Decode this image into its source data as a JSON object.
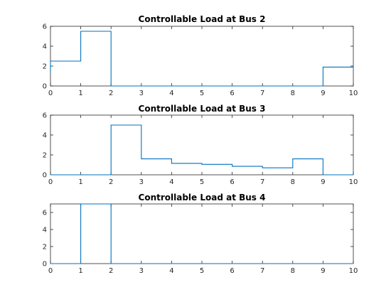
{
  "chart_data": [
    {
      "type": "line",
      "title": "Controllable Load at Bus 2",
      "xlabel": "",
      "ylabel": "",
      "xlim": [
        0,
        10
      ],
      "ylim": [
        0,
        6
      ],
      "xticks": [
        0,
        1,
        2,
        3,
        4,
        5,
        6,
        7,
        8,
        9,
        10
      ],
      "yticks": [
        0,
        2,
        4,
        6
      ],
      "grid": false,
      "series": [
        {
          "color": "#0072BD",
          "x": [
            0,
            0,
            1,
            1,
            2,
            2,
            9,
            9,
            10,
            10
          ],
          "y": [
            1.4,
            2.5,
            2.5,
            5.5,
            5.5,
            0,
            0,
            1.9,
            1.9,
            2.0
          ]
        }
      ]
    },
    {
      "type": "line",
      "title": "Controllable Load at Bus 3",
      "xlabel": "",
      "ylabel": "",
      "xlim": [
        0,
        10
      ],
      "ylim": [
        0,
        6
      ],
      "xticks": [
        0,
        1,
        2,
        3,
        4,
        5,
        6,
        7,
        8,
        9,
        10
      ],
      "yticks": [
        0,
        2,
        4,
        6
      ],
      "grid": false,
      "series": [
        {
          "color": "#0072BD",
          "x": [
            0,
            2,
            2,
            3,
            3,
            4,
            4,
            5,
            5,
            6,
            6,
            7,
            7,
            8,
            8,
            9,
            9,
            10
          ],
          "y": [
            0,
            0,
            5.0,
            5.0,
            1.6,
            1.6,
            1.15,
            1.15,
            1.05,
            1.05,
            0.85,
            0.85,
            0.7,
            0.7,
            1.6,
            1.6,
            0,
            0
          ]
        }
      ]
    },
    {
      "type": "line",
      "title": "Controllable Load at Bus 4",
      "xlabel": "",
      "ylabel": "",
      "xlim": [
        0,
        10
      ],
      "ylim": [
        0,
        7
      ],
      "xticks": [
        0,
        1,
        2,
        3,
        4,
        5,
        6,
        7,
        8,
        9,
        10
      ],
      "yticks": [
        0,
        2,
        4,
        6
      ],
      "grid": false,
      "series": [
        {
          "color": "#0072BD",
          "x": [
            0,
            1,
            1,
            2,
            2,
            10
          ],
          "y": [
            0,
            0,
            7.0,
            7.0,
            0,
            0
          ]
        }
      ]
    }
  ]
}
